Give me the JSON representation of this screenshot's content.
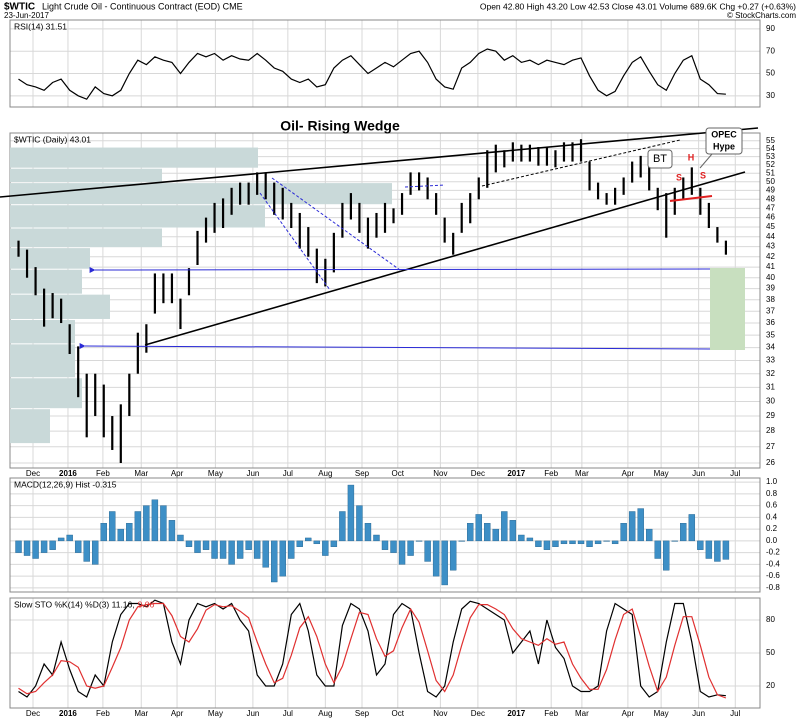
{
  "header": {
    "symbol": "$WTIC",
    "name": "Light Crude Oil - Continuous Contract (EOD) CME",
    "date": "23-Jun-2017",
    "quote": "Open 42.80 High 43.20 Low 42.53 Close 43.01 Volume 689.6K Chg +0.27 (+0.63%)",
    "credit": "© StockCharts.com"
  },
  "chart_data": [
    {
      "type": "line",
      "label": "RSI(14) 31.51",
      "ylim": [
        20,
        98
      ],
      "yticks": [
        30,
        50,
        70,
        90
      ],
      "series": [
        {
          "color": "#000000",
          "values": [
            45,
            40,
            38,
            35,
            42,
            45,
            35,
            30,
            27,
            38,
            32,
            30,
            35,
            50,
            62,
            58,
            65,
            62,
            60,
            50,
            60,
            68,
            65,
            68,
            62,
            66,
            63,
            62,
            68,
            62,
            55,
            52,
            45,
            42,
            45,
            38,
            40,
            55,
            62,
            66,
            58,
            50,
            55,
            60,
            56,
            62,
            68,
            70,
            60,
            45,
            38,
            36,
            55,
            60,
            68,
            72,
            70,
            62,
            66,
            60,
            62,
            58,
            62,
            60,
            58,
            62,
            64,
            48,
            35,
            30,
            34,
            48,
            60,
            65,
            52,
            40,
            35,
            50,
            62,
            66,
            45,
            40,
            32,
            31.51
          ]
        }
      ]
    },
    {
      "type": "ohlc",
      "title": "Oil- Rising Wedge",
      "label": "$WTIC (Daily) 43.01",
      "ylog": true,
      "ylim": [
        25.7,
        56
      ],
      "color": "#000000",
      "yticks": [
        26,
        27,
        28,
        29,
        30,
        31,
        32,
        33,
        34,
        35,
        36,
        37,
        38,
        39,
        40,
        41,
        42,
        43,
        44,
        45,
        46,
        47,
        48,
        49,
        50,
        51,
        52,
        53,
        54,
        55
      ],
      "xlim": [
        0,
        88
      ],
      "xticks": [
        {
          "value": 2.7,
          "label": "Dec"
        },
        {
          "value": 6.8,
          "label": "2016"
        },
        {
          "value": 10.9,
          "label": "Feb"
        },
        {
          "value": 15.4,
          "label": "Mar"
        },
        {
          "value": 19.6,
          "label": "Apr"
        },
        {
          "value": 24.1,
          "label": "May"
        },
        {
          "value": 28.5,
          "label": "Jun"
        },
        {
          "value": 32.6,
          "label": "Jul"
        },
        {
          "value": 37.0,
          "label": "Aug"
        },
        {
          "value": 41.3,
          "label": "Sep"
        },
        {
          "value": 45.5,
          "label": "Oct"
        },
        {
          "value": 50.5,
          "label": "Nov"
        },
        {
          "value": 54.9,
          "label": "Dec"
        },
        {
          "value": 59.4,
          "label": "2017"
        },
        {
          "value": 63.5,
          "label": "Feb"
        },
        {
          "value": 67.1,
          "label": "Mar"
        },
        {
          "value": 72.5,
          "label": "Apr"
        },
        {
          "value": 76.4,
          "label": "May"
        },
        {
          "value": 80.8,
          "label": "Jun"
        },
        {
          "value": 85.1,
          "label": "Jul"
        }
      ],
      "x": [
        1,
        2,
        3,
        4,
        5,
        6,
        7,
        8,
        9,
        10,
        11,
        12,
        13,
        14,
        15,
        16,
        17,
        18,
        19,
        20,
        21,
        22,
        23,
        24,
        25,
        26,
        27,
        28,
        29,
        30,
        31,
        32,
        33,
        34,
        35,
        36,
        37,
        38,
        39,
        40,
        41,
        42,
        43,
        44,
        45,
        46,
        47,
        48,
        49,
        50,
        51,
        52,
        53,
        54,
        55,
        56,
        57,
        58,
        59,
        60,
        61,
        62,
        63,
        64,
        65,
        66,
        67,
        68,
        69,
        70,
        71,
        72,
        73,
        74,
        75,
        76,
        77,
        78,
        79,
        80,
        81,
        82,
        83,
        84
      ],
      "high": [
        43.6,
        42.7,
        41,
        39,
        38.6,
        38.1,
        35.9,
        34.1,
        32,
        32,
        31.2,
        29,
        29.8,
        32,
        35.2,
        35.9,
        40.4,
        40.4,
        40.4,
        38.1,
        40.9,
        44.6,
        46,
        47.6,
        48.1,
        49.3,
        49.9,
        49.9,
        51.1,
        51.1,
        49.9,
        49.3,
        47.6,
        46.5,
        45,
        42.8,
        41.8,
        44.4,
        47.6,
        48.7,
        47.6,
        46,
        46.5,
        47.6,
        47,
        48.7,
        51.1,
        51.1,
        50.5,
        48.7,
        46,
        44.4,
        47.6,
        48.7,
        50.5,
        53.8,
        54.5,
        53.8,
        54.8,
        54.5,
        54.5,
        54.2,
        54.2,
        53.8,
        54.8,
        54.8,
        55.2,
        52.4,
        49.9,
        48.7,
        49.3,
        50.5,
        52.4,
        53.1,
        52.4,
        49.3,
        48.7,
        49.3,
        50.5,
        51.7,
        49.3,
        47.6,
        45,
        43.6
      ],
      "low": [
        42,
        40,
        38.4,
        35.7,
        36.4,
        36,
        33.5,
        30.3,
        27.6,
        29,
        27.6,
        26.8,
        26,
        29,
        32,
        33.6,
        36.8,
        37.7,
        37.7,
        35.5,
        38.4,
        41.2,
        43.4,
        44.4,
        44.9,
        46.3,
        47.4,
        47.4,
        48.5,
        48,
        46.3,
        45.8,
        44.9,
        42.8,
        42,
        39.5,
        39.2,
        40.5,
        43.9,
        45.8,
        44.4,
        42.8,
        43.9,
        44.4,
        45.4,
        46.3,
        48.5,
        49,
        48,
        46.3,
        43.4,
        42.2,
        44.4,
        45.4,
        48,
        49.3,
        51.1,
        51.7,
        52.4,
        52.4,
        52.4,
        51.9,
        51.9,
        51.7,
        52.4,
        52.4,
        52.4,
        49,
        48,
        47.4,
        47.4,
        48.5,
        49.9,
        50.5,
        49,
        46.8,
        43.9,
        46.3,
        48,
        48.5,
        46.3,
        44.9,
        43.4,
        42.2
      ],
      "volume_profile": {
        "color": "#c9d9d9",
        "bins": [
          54.2,
          51.6,
          49.9,
          47.4,
          44.9,
          42.9,
          40.8,
          38.5,
          36.3,
          34.3,
          31.7,
          29.5,
          27.2
        ],
        "values": [
          248,
          152,
          382,
          255,
          152,
          80,
          72,
          100,
          65,
          65,
          72,
          40
        ]
      },
      "annotations": {
        "bt": "BT",
        "opec": [
          "OPEC",
          "Hype"
        ],
        "s1": "S",
        "h": "H",
        "s2": "S"
      }
    },
    {
      "type": "bar",
      "label": "MACD(12,26,9) Hist -0.315",
      "color": "#3d8fc6",
      "ylim": [
        -0.87,
        1.07
      ],
      "yticks": [
        {
          "value": 1.0,
          "label": "1.0"
        },
        0.8,
        0.6,
        0.4,
        0.2,
        {
          "value": 0.0,
          "label": "0.0"
        },
        -0.2,
        -0.4,
        -0.6,
        -0.8
      ],
      "values": [
        -0.2,
        -0.25,
        -0.3,
        -0.2,
        -0.15,
        0.05,
        0.1,
        -0.2,
        -0.35,
        -0.4,
        0.3,
        0.5,
        0.2,
        0.3,
        0.5,
        0.6,
        0.7,
        0.6,
        0.35,
        0.1,
        -0.1,
        -0.2,
        -0.15,
        -0.3,
        -0.3,
        -0.4,
        -0.3,
        -0.15,
        -0.3,
        -0.45,
        -0.7,
        -0.6,
        -0.3,
        -0.1,
        0.05,
        -0.05,
        -0.25,
        -0.1,
        0.5,
        0.95,
        0.6,
        0.3,
        0.1,
        -0.15,
        -0.2,
        -0.4,
        -0.25,
        0.0,
        -0.35,
        -0.6,
        -0.75,
        -0.5,
        0.0,
        0.3,
        0.45,
        0.3,
        0.2,
        0.5,
        0.35,
        0.1,
        0.05,
        -0.1,
        -0.15,
        -0.1,
        -0.05,
        -0.05,
        -0.05,
        -0.1,
        -0.05,
        0.0,
        -0.05,
        0.3,
        0.5,
        0.55,
        0.2,
        -0.3,
        -0.5,
        0.0,
        0.3,
        0.45,
        -0.15,
        -0.3,
        -0.35,
        -0.315
      ]
    },
    {
      "type": "line",
      "label": "Slow STO %K(14) %D(3) 11.16,",
      "label_d": "9.06",
      "ylim": [
        0,
        100
      ],
      "yticks": [
        20,
        50,
        80
      ],
      "series": [
        {
          "color": "#000000",
          "values": [
            15,
            10,
            20,
            40,
            30,
            60,
            35,
            15,
            10,
            30,
            20,
            60,
            85,
            95,
            95,
            92,
            98,
            95,
            60,
            40,
            80,
            95,
            92,
            95,
            90,
            95,
            80,
            70,
            30,
            20,
            20,
            40,
            85,
            95,
            70,
            30,
            20,
            20,
            75,
            95,
            90,
            70,
            30,
            40,
            85,
            95,
            90,
            50,
            15,
            10,
            20,
            60,
            90,
            97,
            95,
            90,
            85,
            80,
            50,
            60,
            70,
            40,
            80,
            55,
            45,
            20,
            15,
            15,
            20,
            70,
            95,
            90,
            85,
            20,
            10,
            15,
            60,
            95,
            95,
            60,
            15,
            10,
            12,
            11.16
          ]
        },
        {
          "color": "#e03030",
          "values": [
            18,
            13,
            15,
            23,
            30,
            43,
            42,
            37,
            20,
            18,
            20,
            37,
            55,
            80,
            92,
            94,
            95,
            95,
            84,
            65,
            60,
            72,
            89,
            94,
            92,
            93,
            88,
            82,
            60,
            40,
            23,
            27,
            48,
            73,
            83,
            65,
            40,
            23,
            38,
            63,
            87,
            85,
            63,
            47,
            52,
            73,
            90,
            78,
            52,
            25,
            15,
            30,
            57,
            82,
            94,
            94,
            90,
            85,
            72,
            63,
            60,
            57,
            63,
            58,
            60,
            40,
            27,
            17,
            17,
            35,
            62,
            85,
            90,
            65,
            38,
            15,
            28,
            57,
            83,
            83,
            57,
            28,
            12,
            9.06
          ]
        }
      ]
    }
  ]
}
